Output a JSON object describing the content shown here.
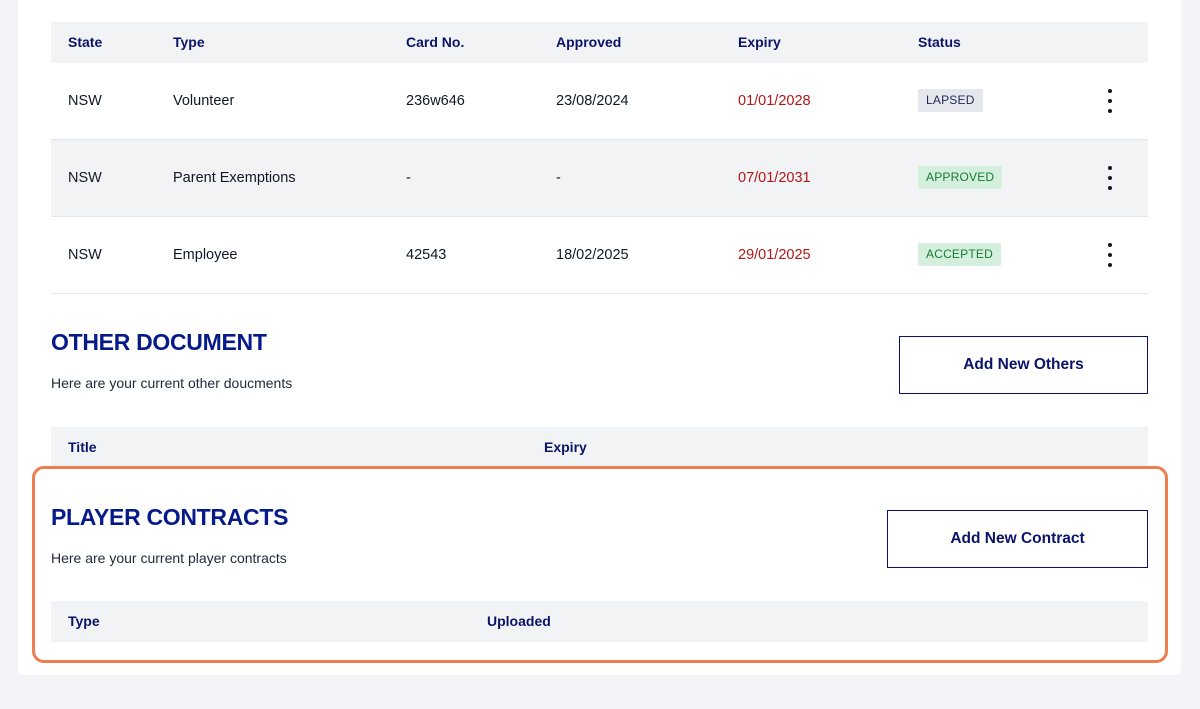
{
  "cards_table": {
    "headers": {
      "state": "State",
      "type": "Type",
      "card_no": "Card No.",
      "approved": "Approved",
      "expiry": "Expiry",
      "status": "Status"
    },
    "rows": [
      {
        "state": "NSW",
        "type": "Volunteer",
        "card_no": "236w646",
        "approved": "23/08/2024",
        "expiry": "01/01/2028",
        "status": "LAPSED"
      },
      {
        "state": "NSW",
        "type": "Parent Exemptions",
        "card_no": "-",
        "approved": "-",
        "expiry": "07/01/2031",
        "status": "APPROVED"
      },
      {
        "state": "NSW",
        "type": "Employee",
        "card_no": "42543",
        "approved": "18/02/2025",
        "expiry": "29/01/2025",
        "status": "ACCEPTED"
      }
    ],
    "row_menu_icon": "kebab-menu-icon"
  },
  "other_document": {
    "title": "OTHER DOCUMENT",
    "subtitle": "Here are your current other doucments",
    "add_button": "Add New Others",
    "headers": {
      "title": "Title",
      "expiry": "Expiry"
    }
  },
  "player_contracts": {
    "title": "PLAYER CONTRACTS",
    "subtitle": "Here are your current player contracts",
    "add_button": "Add New Contract",
    "headers": {
      "type": "Type",
      "uploaded": "Uploaded"
    }
  },
  "colors": {
    "navy": "#0b1368",
    "expiry_red": "#b01717",
    "highlight": "#ef7d4d",
    "badge_green_bg": "#d4f0dc"
  }
}
